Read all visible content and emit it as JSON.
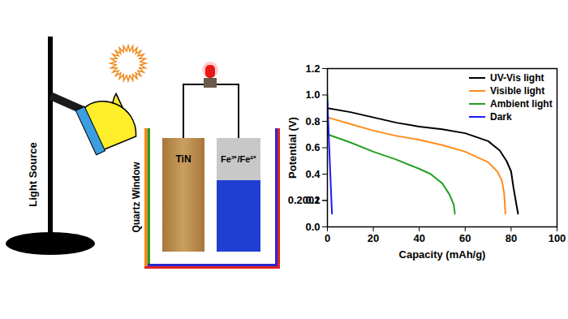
{
  "chart_data": {
    "type": "line",
    "xlabel": "Capacity (mAh/g)",
    "ylabel": "Potential (V)",
    "xlim": [
      0,
      100
    ],
    "xticks": [
      0,
      20,
      40,
      60,
      80,
      100
    ],
    "ylim": [
      0,
      1.2
    ],
    "yticks": [
      {
        "value": 0,
        "label": "0.0"
      },
      0.2,
      0.4,
      0.6,
      0.8,
      {
        "value": 1,
        "label": "1.0"
      },
      0.2001,
      {
        "value": 1.2,
        "label": "1.2"
      }
    ],
    "legend": "top-right",
    "series": [
      {
        "name": "UV-Vis light",
        "color": "#000000",
        "x": [
          0,
          10,
          20,
          30,
          40,
          50,
          60,
          70,
          75,
          78,
          80,
          81,
          82,
          83
        ],
        "values": [
          0.9,
          0.87,
          0.83,
          0.79,
          0.76,
          0.74,
          0.71,
          0.65,
          0.58,
          0.5,
          0.42,
          0.3,
          0.2,
          0.1
        ]
      },
      {
        "name": "Visible light",
        "color": "#ff8c1a",
        "x": [
          0,
          10,
          20,
          30,
          40,
          50,
          60,
          70,
          74,
          76,
          77,
          77.5
        ],
        "values": [
          0.83,
          0.78,
          0.73,
          0.69,
          0.66,
          0.62,
          0.57,
          0.49,
          0.42,
          0.35,
          0.25,
          0.1
        ]
      },
      {
        "name": "Ambient light",
        "color": "#22a022",
        "x": [
          0,
          0.3,
          10,
          20,
          30,
          40,
          45,
          50,
          53,
          55,
          55.5
        ],
        "values": [
          1.0,
          0.7,
          0.64,
          0.57,
          0.51,
          0.44,
          0.4,
          0.33,
          0.25,
          0.17,
          0.1
        ]
      },
      {
        "name": "Dark",
        "color": "#1a1aff",
        "x": [
          0,
          0.8,
          1.5,
          2
        ],
        "values": [
          0.95,
          0.6,
          0.3,
          0.1
        ]
      }
    ]
  },
  "diagram": {
    "light_source": "Light Source",
    "window": "Quartz Window",
    "anode": "TiN",
    "cathode": "Fe³⁺/Fe²⁺"
  }
}
